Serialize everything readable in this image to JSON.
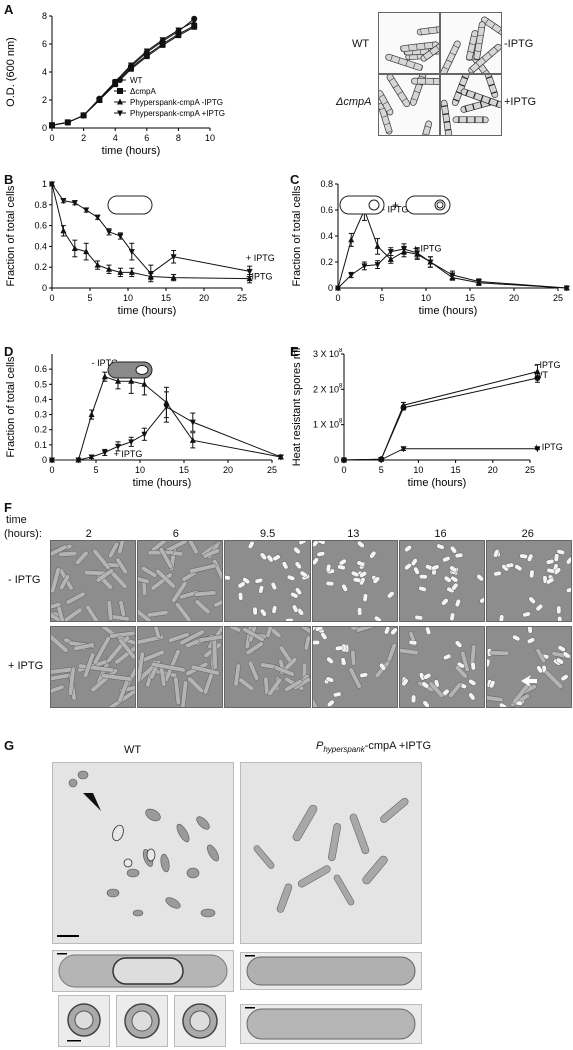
{
  "figure": {
    "panels": [
      "A",
      "B",
      "C",
      "D",
      "E",
      "F",
      "G"
    ]
  },
  "panel_a": {
    "letter": "A",
    "legend": [
      "WT",
      "ΔcmpA",
      "Phyperspank-cmpA -IPTG",
      "Phyperspank-cmpA +IPTG"
    ],
    "micro_labels": [
      "WT",
      "-IPTG",
      "ΔcmpA",
      "+IPTG"
    ]
  },
  "panel_b": {
    "letter": "B"
  },
  "panel_c": {
    "letter": "C"
  },
  "panel_d": {
    "letter": "D"
  },
  "panel_e": {
    "letter": "E"
  },
  "panel_f": {
    "letter": "F",
    "time_label": "time",
    "time_unit": "(hours):",
    "times": [
      "2",
      "6",
      "9.5",
      "13",
      "16",
      "26"
    ],
    "rows": [
      "- IPTG",
      "+ IPTG"
    ]
  },
  "panel_g": {
    "letter": "G",
    "wt_label": "WT",
    "mut_label_main": "P",
    "mut_label_sub": "hyperspank",
    "mut_label_rest": "-cmpA +IPTG"
  },
  "chart_data": [
    {
      "id": "A",
      "type": "line",
      "xlabel": "time (hours)",
      "ylabel": "O.D. (600 nm)",
      "xlim": [
        0,
        10
      ],
      "ylim": [
        0,
        8
      ],
      "xticks": [
        0,
        2,
        4,
        6,
        8,
        10
      ],
      "yticks": [
        0,
        2,
        4,
        6,
        8
      ],
      "series": [
        {
          "name": "WT",
          "x": [
            0,
            1,
            2,
            3,
            4,
            5,
            6,
            7,
            8,
            9
          ],
          "y": [
            0.2,
            0.4,
            0.9,
            2.1,
            3.3,
            4.4,
            5.4,
            6.2,
            6.9,
            7.8
          ]
        },
        {
          "name": "ΔcmpA",
          "x": [
            0,
            1,
            2,
            3,
            4,
            5,
            6,
            7,
            8,
            9
          ],
          "y": [
            0.2,
            0.4,
            0.9,
            2.0,
            3.2,
            4.3,
            5.2,
            6.0,
            6.7,
            7.3
          ]
        },
        {
          "name": "Phyperspank-cmpA -IPTG",
          "x": [
            0,
            1,
            2,
            3,
            4,
            5,
            6,
            7,
            8,
            9
          ],
          "y": [
            0.2,
            0.4,
            0.9,
            2.0,
            3.1,
            4.2,
            5.1,
            5.9,
            6.6,
            7.2
          ]
        },
        {
          "name": "Phyperspank-cmpA +IPTG",
          "x": [
            0,
            1,
            2,
            3,
            4,
            5,
            6,
            7,
            8,
            9
          ],
          "y": [
            0.2,
            0.4,
            0.9,
            2.0,
            3.3,
            4.5,
            5.5,
            6.3,
            7.0,
            7.6
          ]
        }
      ]
    },
    {
      "id": "B",
      "type": "line",
      "xlabel": "time (hours)",
      "ylabel": "Fraction of total cells",
      "xlim": [
        0,
        25
      ],
      "ylim": [
        0,
        1.0
      ],
      "xticks": [
        0,
        5,
        10,
        15,
        20,
        25
      ],
      "yticks": [
        0,
        0.2,
        0.4,
        0.6,
        0.8,
        1.0
      ],
      "series": [
        {
          "name": "+ IPTG",
          "x": [
            0,
            1.5,
            3,
            4.5,
            6,
            7.5,
            9,
            10.5,
            13,
            16,
            26
          ],
          "y": [
            1.0,
            0.84,
            0.82,
            0.75,
            0.68,
            0.54,
            0.5,
            0.35,
            0.14,
            0.3,
            0.16
          ],
          "err": [
            0,
            0.02,
            0.02,
            0.02,
            0.02,
            0.03,
            0.03,
            0.08,
            0.08,
            0.06,
            0.05
          ]
        },
        {
          "name": "- IPTG",
          "x": [
            0,
            1.5,
            3,
            4.5,
            6,
            7.5,
            9,
            10.5,
            13,
            16,
            26
          ],
          "y": [
            1.0,
            0.55,
            0.38,
            0.35,
            0.22,
            0.18,
            0.15,
            0.15,
            0.11,
            0.1,
            0.09
          ],
          "err": [
            0,
            0.05,
            0.08,
            0.08,
            0.04,
            0.04,
            0.04,
            0.04,
            0.03,
            0.03,
            0.04
          ]
        }
      ]
    },
    {
      "id": "C",
      "type": "line",
      "xlabel": "time (hours)",
      "ylabel": "Fraction of total cells",
      "xlim": [
        0,
        25
      ],
      "ylim": [
        0,
        0.8
      ],
      "xticks": [
        0,
        5,
        10,
        15,
        20,
        25
      ],
      "yticks": [
        0,
        0.2,
        0.4,
        0.6,
        0.8
      ],
      "series": [
        {
          "name": "- IPTG",
          "x": [
            0,
            1.5,
            3,
            4.5,
            6,
            7.5,
            9,
            10.5,
            13,
            16,
            26
          ],
          "y": [
            0,
            0.37,
            0.6,
            0.32,
            0.22,
            0.28,
            0.26,
            0.2,
            0.08,
            0.04,
            0.0
          ],
          "err": [
            0,
            0.05,
            0.08,
            0.06,
            0.03,
            0.04,
            0.04,
            0.04,
            0.02,
            0.02,
            0.01
          ]
        },
        {
          "name": "+ IPTG",
          "x": [
            0,
            1.5,
            3,
            4.5,
            6,
            7.5,
            9,
            10.5,
            13,
            16,
            26
          ],
          "y": [
            0,
            0.1,
            0.17,
            0.18,
            0.28,
            0.3,
            0.27,
            0.2,
            0.1,
            0.05,
            0.0
          ],
          "err": [
            0,
            0.02,
            0.03,
            0.03,
            0.03,
            0.04,
            0.04,
            0.04,
            0.03,
            0.02,
            0.01
          ]
        }
      ]
    },
    {
      "id": "D",
      "type": "line",
      "xlabel": "time (hours)",
      "ylabel": "Fraction of total cells",
      "xlim": [
        0,
        25
      ],
      "ylim": [
        0,
        0.7
      ],
      "xticks": [
        0,
        5,
        10,
        15,
        20,
        25
      ],
      "yticks": [
        0,
        0.1,
        0.2,
        0.3,
        0.4,
        0.5,
        0.6
      ],
      "series": [
        {
          "name": "- IPTG",
          "x": [
            0,
            3,
            4.5,
            6,
            7.5,
            9,
            10.5,
            13,
            16,
            26
          ],
          "y": [
            0,
            0.0,
            0.3,
            0.55,
            0.52,
            0.52,
            0.5,
            0.38,
            0.13,
            0.02
          ],
          "err": [
            0,
            0,
            0.03,
            0.03,
            0.05,
            0.08,
            0.07,
            0.1,
            0.05,
            0.01
          ]
        },
        {
          "name": "+ IPTG",
          "x": [
            0,
            3,
            4.5,
            6,
            7.5,
            9,
            10.5,
            13,
            16,
            26
          ],
          "y": [
            0,
            0.0,
            0.02,
            0.05,
            0.09,
            0.12,
            0.17,
            0.35,
            0.25,
            0.02
          ],
          "err": [
            0,
            0,
            0.01,
            0.02,
            0.03,
            0.03,
            0.04,
            0.1,
            0.06,
            0.01
          ]
        }
      ]
    },
    {
      "id": "E",
      "type": "line",
      "xlabel": "time (hours)",
      "ylabel": "Heat resistant spores ml",
      "xlim": [
        0,
        25
      ],
      "ylim": [
        0,
        3
      ],
      "xticks": [
        0,
        5,
        10,
        15,
        20,
        25
      ],
      "yticks": [
        0,
        1,
        2,
        3
      ],
      "ytick_labels": [
        "0",
        "1 X 10",
        "2 X 10",
        "3 X 10"
      ],
      "series": [
        {
          "name": "- IPTG",
          "x": [
            0,
            5,
            8,
            26
          ],
          "y": [
            0,
            0.02,
            1.55,
            2.5
          ],
          "err": [
            0,
            0.01,
            0.08,
            0.2
          ]
        },
        {
          "name": "WT",
          "x": [
            0,
            5,
            8,
            26
          ],
          "y": [
            0,
            0.02,
            1.48,
            2.32
          ],
          "err": [
            0,
            0.01,
            0.06,
            0.12
          ]
        },
        {
          "name": "+ IPTG",
          "x": [
            0,
            5,
            8,
            26
          ],
          "y": [
            0,
            0.01,
            0.32,
            0.32
          ],
          "err": [
            0,
            0.01,
            0.05,
            0.02
          ]
        }
      ]
    }
  ]
}
